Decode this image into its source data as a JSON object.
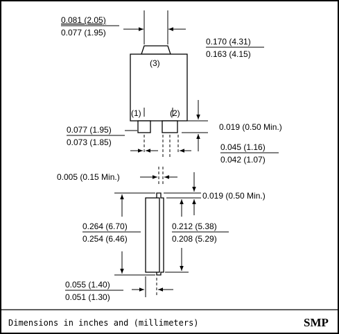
{
  "dimensions": {
    "tab_width": {
      "max": "0.081 (2.05)",
      "min": "0.077 (1.95)"
    },
    "body_width": {
      "max": "0.170 (4.31)",
      "min": "0.163 (4.15)"
    },
    "lead_width": {
      "max": "0.077 (1.95)",
      "min": "0.073 (1.85)"
    },
    "lead_length": "0.019 (0.50 Min.)",
    "lead_pitch": {
      "max": "0.045 (1.16)",
      "min": "0.042 (1.07)"
    },
    "lead_thickness": "0.005 (0.15 Min.)",
    "side_lead_length": "0.019 (0.50 Min.)",
    "overall_length": {
      "max": "0.264 (6.70)",
      "min": "0.254 (6.46)"
    },
    "body_length": {
      "max": "0.212 (5.38)",
      "min": "0.208 (5.29)"
    },
    "package_thickness": {
      "max": "0.055 (1.40)",
      "min": "0.051 (1.30)"
    }
  },
  "pins": {
    "pin3": "(3)",
    "pin1": "(1)",
    "pin2": "(2)"
  },
  "footer": {
    "caption": "Dimensions in inches and (millimeters)",
    "package_name": "SMP"
  }
}
